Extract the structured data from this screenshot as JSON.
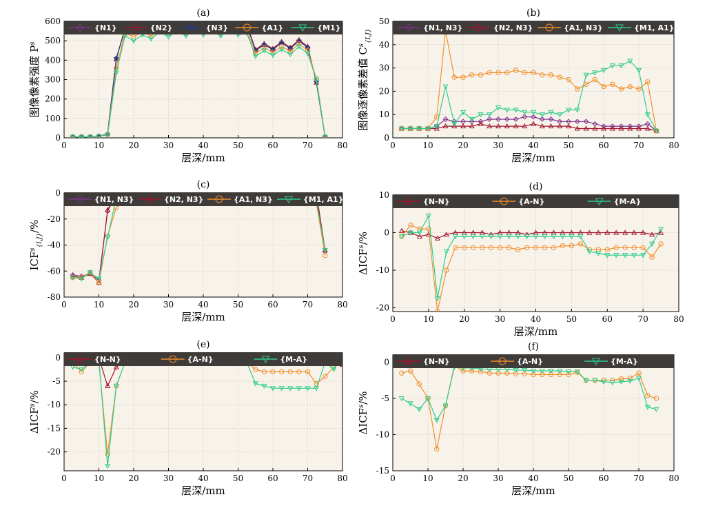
{
  "chart_data": [
    {
      "type": "line",
      "title": "(a)",
      "xlabel": "层深/mm",
      "ylabel": "图像像素强度 P^s",
      "xlim": [
        0,
        80
      ],
      "ylim": [
        0,
        600
      ],
      "xticks": [
        0,
        10,
        20,
        30,
        40,
        50,
        60,
        70,
        80
      ],
      "yticks": [
        0,
        100,
        200,
        300,
        400,
        500,
        600
      ],
      "legend": "top",
      "x": [
        2.5,
        5,
        7.5,
        10,
        12.5,
        15,
        17.5,
        20,
        22.5,
        25,
        27.5,
        30,
        32.5,
        35,
        37.5,
        40,
        42.5,
        45,
        47.5,
        50,
        52.5,
        55,
        57.5,
        60,
        62.5,
        65,
        67.5,
        70,
        72.5,
        75
      ],
      "series": [
        {
          "name": "{N1}",
          "color": "#7e2f8e",
          "marker": "diamond",
          "values": [
            5,
            5,
            5,
            8,
            20,
            410,
            560,
            545,
            570,
            550,
            590,
            560,
            590,
            565,
            595,
            570,
            590,
            565,
            595,
            570,
            580,
            450,
            480,
            455,
            490,
            460,
            500,
            465,
            290,
            5
          ]
        },
        {
          "name": "{N2}",
          "color": "#a2142f",
          "marker": "triangle-up",
          "values": [
            5,
            5,
            5,
            8,
            20,
            405,
            565,
            550,
            575,
            555,
            595,
            565,
            595,
            570,
            600,
            575,
            595,
            570,
            600,
            575,
            585,
            455,
            485,
            460,
            495,
            465,
            505,
            470,
            285,
            5
          ]
        },
        {
          "name": "{N3}",
          "color": "#1f3c88",
          "marker": "star",
          "values": [
            5,
            5,
            5,
            8,
            20,
            410,
            560,
            545,
            575,
            550,
            590,
            560,
            590,
            565,
            595,
            570,
            590,
            565,
            595,
            570,
            580,
            450,
            480,
            455,
            490,
            460,
            500,
            465,
            290,
            5
          ]
        },
        {
          "name": "{A1}",
          "color": "#f28e2b",
          "marker": "circle",
          "values": [
            5,
            5,
            5,
            8,
            18,
            360,
            540,
            520,
            545,
            525,
            560,
            540,
            565,
            540,
            570,
            545,
            565,
            540,
            570,
            545,
            555,
            435,
            465,
            440,
            470,
            445,
            485,
            450,
            305,
            5
          ]
        },
        {
          "name": "{M1}",
          "color": "#2ecc8b",
          "marker": "triangle-down",
          "values": [
            5,
            5,
            5,
            8,
            15,
            335,
            525,
            500,
            530,
            510,
            545,
            520,
            550,
            525,
            555,
            530,
            550,
            525,
            555,
            530,
            540,
            420,
            450,
            425,
            455,
            430,
            470,
            435,
            300,
            5
          ]
        }
      ]
    },
    {
      "type": "line",
      "title": "(b)",
      "xlabel": "层深/mm",
      "ylabel": "图像逐像素差值 C^s_{I,J}",
      "xlim": [
        0,
        80
      ],
      "ylim": [
        0,
        50
      ],
      "xticks": [
        0,
        10,
        20,
        30,
        40,
        50,
        60,
        70,
        80
      ],
      "yticks": [
        0,
        10,
        20,
        30,
        40,
        50
      ],
      "legend": "top",
      "x": [
        2.5,
        5,
        7.5,
        10,
        12.5,
        15,
        17.5,
        20,
        22.5,
        25,
        27.5,
        30,
        32.5,
        35,
        37.5,
        40,
        42.5,
        45,
        47.5,
        50,
        52.5,
        55,
        57.5,
        60,
        62.5,
        65,
        67.5,
        70,
        72.5,
        75
      ],
      "series": [
        {
          "name": "{N1, N3}",
          "color": "#7e2f8e",
          "marker": "diamond",
          "values": [
            4,
            4,
            4,
            4,
            5,
            8,
            7,
            7,
            7,
            7,
            8,
            8,
            8,
            8,
            9,
            9,
            8,
            8,
            7,
            7,
            7,
            7,
            6,
            5,
            5,
            5,
            5,
            5,
            6,
            3
          ]
        },
        {
          "name": "{N2, N3}",
          "color": "#a2142f",
          "marker": "triangle-up",
          "values": [
            4,
            4,
            4,
            4,
            4,
            5,
            5,
            5,
            5,
            6,
            5,
            5,
            5,
            5,
            5,
            6,
            5,
            5,
            5,
            5,
            4,
            4,
            4,
            4,
            4,
            4,
            4,
            4,
            4,
            3
          ]
        },
        {
          "name": "{A1, N3}",
          "color": "#f28e2b",
          "marker": "circle",
          "values": [
            4,
            4,
            4,
            4,
            9,
            46,
            26,
            26,
            27,
            27,
            28,
            28,
            28,
            29,
            28,
            28,
            27,
            27,
            26,
            25,
            21,
            23,
            25,
            22,
            23,
            21,
            22,
            21,
            24,
            3
          ]
        },
        {
          "name": "{M1, A1}",
          "color": "#2ecc8b",
          "marker": "triangle-down",
          "values": [
            4,
            4,
            4,
            4,
            5,
            22,
            6,
            11,
            8,
            10,
            10,
            13,
            12,
            12,
            11,
            11,
            10,
            11,
            10,
            12,
            12,
            27,
            28,
            29,
            31,
            31,
            33,
            29,
            10,
            3
          ]
        }
      ]
    },
    {
      "type": "line",
      "title": "(c)",
      "xlabel": "层深/mm",
      "ylabel": "ICF^s_{I,J}/%",
      "xlim": [
        0,
        80
      ],
      "ylim": [
        -80,
        0
      ],
      "xticks": [
        0,
        10,
        20,
        30,
        40,
        50,
        60,
        70,
        80
      ],
      "yticks": [
        -80,
        -60,
        -40,
        -20,
        0
      ],
      "legend": "top",
      "x": [
        2.5,
        5,
        7.5,
        10,
        12.5,
        15,
        17.5,
        20,
        22.5,
        25,
        27.5,
        30,
        32.5,
        35,
        37.5,
        40,
        42.5,
        45,
        47.5,
        50,
        52.5,
        55,
        57.5,
        60,
        62.5,
        65,
        67.5,
        70,
        72.5,
        75
      ],
      "series": [
        {
          "name": "{N1, N3}",
          "color": "#7e2f8e",
          "marker": "diamond",
          "values": [
            -63,
            -64,
            -62,
            -67,
            -14,
            -1,
            -1,
            -1,
            -1,
            -1,
            -1,
            -1,
            -1,
            -1,
            -1,
            -1,
            -1,
            -1,
            -1,
            -1,
            -1,
            -1,
            -1,
            -1,
            -1,
            -1,
            -1,
            -1,
            -1,
            -45
          ]
        },
        {
          "name": "{N2, N3}",
          "color": "#a2142f",
          "marker": "triangle-up",
          "values": [
            -64,
            -65,
            -62,
            -69,
            -13,
            -1,
            0,
            0,
            0,
            0,
            0,
            0,
            0,
            0,
            0,
            0,
            0,
            0,
            0,
            0,
            0,
            0,
            0,
            0,
            0,
            0,
            0,
            0,
            0,
            -44
          ]
        },
        {
          "name": "{A1, N3}",
          "color": "#f28e2b",
          "marker": "circle",
          "values": [
            -65,
            -65,
            -61,
            -69,
            -33,
            -11,
            -5,
            -5,
            -5,
            -5,
            -5,
            -5,
            -5,
            -5,
            -5,
            -5,
            -5,
            -5,
            -5,
            -5,
            -4,
            -5,
            -5,
            -5,
            -5,
            -5,
            -5,
            -5,
            -8,
            -48
          ]
        },
        {
          "name": "{M1, A1}",
          "color": "#2ecc8b",
          "marker": "triangle-down",
          "values": [
            -65,
            -66,
            -61,
            -66,
            -34,
            -4,
            -1,
            -1,
            -1,
            -1,
            -1,
            -1,
            -1,
            -1,
            -1,
            -1,
            -1,
            -1,
            -1,
            -1,
            -1,
            -6,
            -6,
            -6,
            -6,
            -6,
            -6,
            -6,
            -6,
            -44
          ]
        }
      ]
    },
    {
      "type": "line",
      "title": "(d)",
      "xlabel": "层深/mm",
      "ylabel": "ΔICF^s/%",
      "xlim": [
        0,
        80
      ],
      "ylim": [
        -21,
        10
      ],
      "xticks": [
        0,
        10,
        20,
        30,
        40,
        50,
        60,
        70,
        80
      ],
      "yticks": [
        -20,
        -10,
        0,
        10
      ],
      "legend": "top",
      "x": [
        2.5,
        5,
        7.5,
        10,
        12.5,
        15,
        17.5,
        20,
        22.5,
        25,
        27.5,
        30,
        32.5,
        35,
        37.5,
        40,
        42.5,
        45,
        47.5,
        50,
        52.5,
        55,
        57.5,
        60,
        62.5,
        65,
        67.5,
        70,
        72.5,
        75
      ],
      "series": [
        {
          "name": "{N-N}",
          "color": "#a2142f",
          "marker": "triangle-up",
          "values": [
            0.5,
            0,
            -1,
            -0.5,
            -1.5,
            -0.5,
            0,
            0,
            0,
            0,
            -0.5,
            0,
            0,
            0,
            -0.5,
            0,
            0,
            0,
            0,
            0,
            0,
            0,
            0,
            0,
            0,
            0,
            0,
            0,
            -0.5,
            0
          ]
        },
        {
          "name": "{A-N}",
          "color": "#f28e2b",
          "marker": "circle",
          "values": [
            -1,
            2,
            1,
            1,
            -21,
            -10,
            -4,
            -4,
            -4,
            -4,
            -4,
            -4,
            -4,
            -4.5,
            -4,
            -4,
            -4,
            -4,
            -3.5,
            -3.5,
            -3,
            -4.5,
            -4.5,
            -4.5,
            -4,
            -4,
            -4,
            -4,
            -6.5,
            -3
          ]
        },
        {
          "name": "{M-A}",
          "color": "#2ecc8b",
          "marker": "triangle-down",
          "values": [
            -1,
            0,
            0,
            4.5,
            -17.5,
            -5,
            -1,
            -1,
            -1,
            -1,
            -1,
            -1,
            -1,
            -1,
            -1,
            -1,
            -1,
            -1,
            -1,
            -1,
            -1,
            -5,
            -5.5,
            -6,
            -6,
            -6,
            -6,
            -6,
            -3,
            1
          ]
        }
      ]
    },
    {
      "type": "line",
      "title": "(e)",
      "xlabel": "层深/mm",
      "ylabel": "ΔICF^s/%",
      "xlim": [
        0,
        80
      ],
      "ylim": [
        -24,
        1
      ],
      "xticks": [
        0,
        10,
        20,
        30,
        40,
        50,
        60,
        70,
        80
      ],
      "yticks": [
        -20,
        -15,
        -10,
        -5,
        0
      ],
      "legend": "top",
      "x": [
        2.5,
        5,
        7.5,
        10,
        12.5,
        15,
        17.5,
        20,
        22.5,
        25,
        27.5,
        30,
        32.5,
        35,
        37.5,
        40,
        42.5,
        45,
        47.5,
        50,
        52.5,
        55,
        57.5,
        60,
        62.5,
        65,
        67.5,
        70,
        72.5,
        75,
        77.5,
        80
      ],
      "series": [
        {
          "name": "{N-N}",
          "color": "#a2142f",
          "marker": "triangle-up",
          "values": [
            0,
            -0.5,
            0,
            0,
            -6,
            -2,
            -0.5,
            -0.5,
            -0.5,
            -0.5,
            -0.5,
            -0.5,
            -0.5,
            -0.5,
            -0.5,
            -0.5,
            -0.5,
            -0.5,
            -0.5,
            -0.5,
            -0.5,
            -0.5,
            -0.5,
            -0.5,
            -0.5,
            -0.5,
            -0.5,
            -0.5,
            -0.5,
            -1,
            -1,
            -1.5
          ]
        },
        {
          "name": "{A-N}",
          "color": "#f28e2b",
          "marker": "circle",
          "values": [
            -1,
            -3,
            -1,
            -1,
            -20.5,
            -6,
            -1,
            -1,
            -0.5,
            -0.5,
            0,
            -0.5,
            -0.5,
            -0.5,
            -0.5,
            -1,
            -1,
            -1,
            -1,
            -1,
            -1,
            -2.5,
            -3,
            -3,
            -3,
            -3,
            -3,
            -3,
            -5.5,
            -4,
            -2,
            1
          ]
        },
        {
          "name": "{M-A}",
          "color": "#2ecc8b",
          "marker": "triangle-down",
          "values": [
            -2,
            -2.5,
            -1,
            -0.5,
            -23,
            -6,
            -1,
            -1,
            -1,
            -1,
            -0.5,
            -1,
            -1,
            -1,
            -1,
            -1,
            -1,
            -1,
            -1,
            -1,
            -1,
            -5.5,
            -6,
            -6.5,
            -6.5,
            -6.5,
            -6.5,
            -6.5,
            -6.5,
            -1,
            -2.5,
            1
          ]
        }
      ]
    },
    {
      "type": "line",
      "title": "(f)",
      "xlabel": "层深/mm",
      "ylabel": "ΔICF^s/%",
      "xlim": [
        0,
        80
      ],
      "ylim": [
        -15,
        1
      ],
      "xticks": [
        0,
        10,
        20,
        30,
        40,
        50,
        60,
        70,
        80
      ],
      "yticks": [
        -15,
        -10,
        -5,
        0
      ],
      "legend": "top",
      "x": [
        2.5,
        5,
        7.5,
        10,
        12.5,
        15,
        17.5,
        20,
        22.5,
        25,
        27.5,
        30,
        32.5,
        35,
        37.5,
        40,
        42.5,
        45,
        47.5,
        50,
        52.5,
        55,
        57.5,
        60,
        62.5,
        65,
        67.5,
        70,
        72.5,
        75
      ],
      "series": [
        {
          "name": "{N-N}",
          "color": "#a2142f",
          "marker": "triangle-up",
          "values": [
            0.5,
            0,
            -0.5,
            0.3,
            0,
            0,
            0,
            0,
            0,
            0,
            0,
            0,
            0,
            0,
            0,
            0,
            0,
            0,
            0,
            0,
            0,
            0,
            0,
            0,
            0,
            0,
            0,
            0,
            0,
            0.2
          ]
        },
        {
          "name": "{A-N}",
          "color": "#f28e2b",
          "marker": "circle",
          "values": [
            -1.5,
            -1.2,
            -3,
            -5,
            -12,
            -6,
            -0.5,
            -1.2,
            -1.2,
            -1.3,
            -1.5,
            -1.5,
            -1.5,
            -1.6,
            -1.6,
            -1.7,
            -1.7,
            -1.7,
            -1.7,
            -1.7,
            -1.4,
            -2.5,
            -2.5,
            -2.5,
            -2.5,
            -2.3,
            -2.2,
            -1.5,
            -4.6,
            -5
          ]
        },
        {
          "name": "{M-A}",
          "color": "#2ecc8b",
          "marker": "triangle-down",
          "values": [
            -5,
            -5.7,
            -6.5,
            -5,
            -8,
            -6,
            -0.7,
            -0.8,
            -0.8,
            -0.9,
            -1,
            -1,
            -1,
            -1.1,
            -1.1,
            -1.2,
            -1.2,
            -1.2,
            -1.2,
            -1.3,
            -1.3,
            -2.5,
            -2.5,
            -2.7,
            -2.8,
            -2.7,
            -2.6,
            -2.2,
            -6.2,
            -6.5
          ]
        }
      ]
    }
  ]
}
